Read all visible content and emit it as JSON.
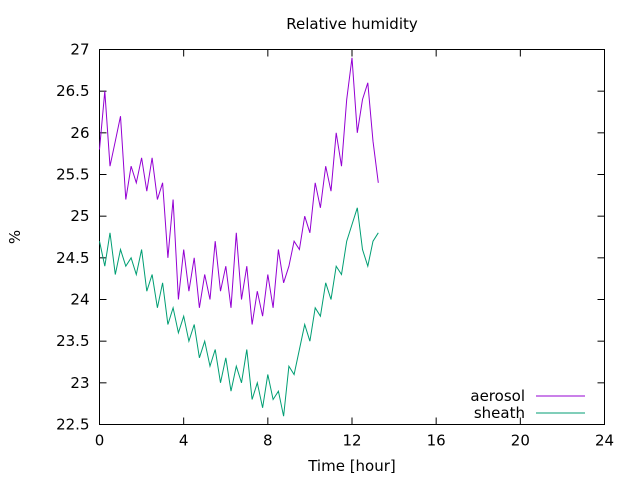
{
  "chart_data": {
    "type": "line",
    "title": "Relative humidity",
    "xlabel": "Time [hour]",
    "ylabel": "%",
    "xlim": [
      0,
      24
    ],
    "ylim": [
      22.5,
      27
    ],
    "x_ticks": [
      "0",
      "4",
      "8",
      "12",
      "16",
      "20",
      "24"
    ],
    "x_tick_values": [
      0,
      4,
      8,
      12,
      16,
      20,
      24
    ],
    "y_ticks": [
      "22.5",
      "23",
      "23.5",
      "24",
      "24.5",
      "25",
      "25.5",
      "26",
      "26.5",
      "27"
    ],
    "y_tick_values": [
      22.5,
      23,
      23.5,
      24,
      24.5,
      25,
      25.5,
      26,
      26.5,
      27
    ],
    "grid": false,
    "legend": "bottom-right",
    "series": [
      {
        "name": "aerosol",
        "color": "#9400d3",
        "x": [
          0,
          0.25,
          0.5,
          0.75,
          1,
          1.25,
          1.5,
          1.75,
          2,
          2.25,
          2.5,
          2.75,
          3,
          3.25,
          3.5,
          3.75,
          4,
          4.25,
          4.5,
          4.75,
          5,
          5.25,
          5.5,
          5.75,
          6,
          6.25,
          6.5,
          6.75,
          7,
          7.25,
          7.5,
          7.75,
          8,
          8.25,
          8.5,
          8.75,
          9,
          9.25,
          9.5,
          9.75,
          10,
          10.25,
          10.5,
          10.75,
          11,
          11.25,
          11.5,
          11.75,
          12,
          12.25,
          12.5,
          12.75,
          13,
          13.25
        ],
        "y": [
          25.8,
          26.5,
          25.6,
          25.9,
          26.2,
          25.2,
          25.6,
          25.4,
          25.7,
          25.3,
          25.7,
          25.2,
          25.4,
          24.5,
          25.2,
          24.0,
          24.6,
          24.1,
          24.5,
          23.9,
          24.3,
          24.0,
          24.7,
          24.1,
          24.4,
          23.9,
          24.8,
          24.0,
          24.4,
          23.7,
          24.1,
          23.8,
          24.3,
          23.9,
          24.6,
          24.2,
          24.4,
          24.7,
          24.6,
          25.0,
          24.8,
          25.4,
          25.1,
          25.6,
          25.3,
          26.0,
          25.6,
          26.4,
          26.9,
          26.0,
          26.4,
          26.6,
          25.9,
          25.4
        ]
      },
      {
        "name": "sheath",
        "color": "#009e73",
        "x": [
          0,
          0.25,
          0.5,
          0.75,
          1,
          1.25,
          1.5,
          1.75,
          2,
          2.25,
          2.5,
          2.75,
          3,
          3.25,
          3.5,
          3.75,
          4,
          4.25,
          4.5,
          4.75,
          5,
          5.25,
          5.5,
          5.75,
          6,
          6.25,
          6.5,
          6.75,
          7,
          7.25,
          7.5,
          7.75,
          8,
          8.25,
          8.5,
          8.75,
          9,
          9.25,
          9.5,
          9.75,
          10,
          10.25,
          10.5,
          10.75,
          11,
          11.25,
          11.5,
          11.75,
          12,
          12.25,
          12.5,
          12.75,
          13,
          13.25
        ],
        "y": [
          24.7,
          24.4,
          24.8,
          24.3,
          24.6,
          24.4,
          24.5,
          24.3,
          24.6,
          24.1,
          24.3,
          23.9,
          24.2,
          23.7,
          23.9,
          23.6,
          23.8,
          23.5,
          23.7,
          23.3,
          23.5,
          23.2,
          23.4,
          23.0,
          23.3,
          22.9,
          23.2,
          23.0,
          23.4,
          22.8,
          23.0,
          22.7,
          23.1,
          22.8,
          22.9,
          22.6,
          23.2,
          23.1,
          23.4,
          23.7,
          23.5,
          23.9,
          23.8,
          24.2,
          24.0,
          24.4,
          24.3,
          24.7,
          24.9,
          25.1,
          24.6,
          24.4,
          24.7,
          24.8
        ]
      }
    ]
  }
}
